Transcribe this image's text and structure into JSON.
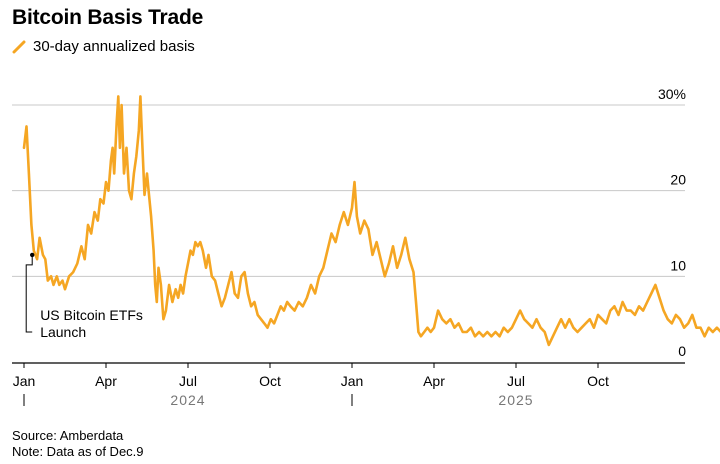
{
  "chart_data": {
    "type": "line",
    "title": "Bitcoin Basis Trade",
    "series": [
      {
        "name": "30-day annualized basis",
        "color": "#F5A623",
        "points": [
          [
            0.0,
            25.0
          ],
          [
            0.03,
            27.5
          ],
          [
            0.06,
            22.0
          ],
          [
            0.09,
            16.0
          ],
          [
            0.12,
            13.0
          ],
          [
            0.16,
            12.0
          ],
          [
            0.19,
            14.5
          ],
          [
            0.23,
            12.5
          ],
          [
            0.26,
            12.0
          ],
          [
            0.29,
            9.5
          ],
          [
            0.33,
            10.0
          ],
          [
            0.36,
            9.0
          ],
          [
            0.4,
            10.0
          ],
          [
            0.43,
            9.0
          ],
          [
            0.47,
            9.5
          ],
          [
            0.5,
            8.5
          ],
          [
            0.55,
            10.0
          ],
          [
            0.6,
            10.5
          ],
          [
            0.65,
            11.5
          ],
          [
            0.7,
            13.5
          ],
          [
            0.74,
            12.0
          ],
          [
            0.78,
            16.0
          ],
          [
            0.82,
            15.0
          ],
          [
            0.86,
            17.5
          ],
          [
            0.9,
            16.5
          ],
          [
            0.93,
            19.0
          ],
          [
            0.97,
            18.5
          ],
          [
            1.0,
            21.0
          ],
          [
            1.03,
            20.0
          ],
          [
            1.06,
            23.5
          ],
          [
            1.08,
            25.0
          ],
          [
            1.1,
            22.0
          ],
          [
            1.13,
            28.0
          ],
          [
            1.15,
            31.0
          ],
          [
            1.17,
            25.0
          ],
          [
            1.19,
            30.0
          ],
          [
            1.22,
            22.0
          ],
          [
            1.25,
            25.0
          ],
          [
            1.28,
            20.0
          ],
          [
            1.31,
            19.0
          ],
          [
            1.34,
            22.0
          ],
          [
            1.37,
            24.0
          ],
          [
            1.4,
            27.0
          ],
          [
            1.42,
            31.0
          ],
          [
            1.44,
            26.0
          ],
          [
            1.47,
            19.5
          ],
          [
            1.5,
            22.0
          ],
          [
            1.52,
            20.0
          ],
          [
            1.55,
            17.0
          ],
          [
            1.58,
            13.0
          ],
          [
            1.6,
            9.0
          ],
          [
            1.62,
            7.0
          ],
          [
            1.64,
            11.0
          ],
          [
            1.67,
            9.0
          ],
          [
            1.7,
            5.0
          ],
          [
            1.73,
            6.0
          ],
          [
            1.77,
            9.0
          ],
          [
            1.81,
            7.0
          ],
          [
            1.85,
            8.5
          ],
          [
            1.88,
            7.5
          ],
          [
            1.91,
            9.0
          ],
          [
            1.94,
            8.0
          ],
          [
            1.97,
            10.0
          ],
          [
            2.0,
            11.5
          ],
          [
            2.03,
            13.0
          ],
          [
            2.06,
            12.5
          ],
          [
            2.09,
            14.0
          ],
          [
            2.12,
            13.5
          ],
          [
            2.15,
            14.0
          ],
          [
            2.18,
            13.0
          ],
          [
            2.22,
            11.0
          ],
          [
            2.25,
            12.5
          ],
          [
            2.29,
            10.0
          ],
          [
            2.33,
            9.5
          ],
          [
            2.37,
            8.0
          ],
          [
            2.41,
            6.5
          ],
          [
            2.45,
            7.5
          ],
          [
            2.49,
            9.0
          ],
          [
            2.53,
            10.5
          ],
          [
            2.57,
            8.0
          ],
          [
            2.61,
            7.5
          ],
          [
            2.65,
            10.0
          ],
          [
            2.69,
            10.5
          ],
          [
            2.73,
            8.0
          ],
          [
            2.77,
            6.5
          ],
          [
            2.81,
            7.0
          ],
          [
            2.85,
            5.5
          ],
          [
            2.89,
            5.0
          ],
          [
            2.93,
            4.5
          ],
          [
            2.97,
            4.0
          ],
          [
            3.01,
            5.0
          ],
          [
            3.05,
            4.5
          ],
          [
            3.09,
            5.5
          ],
          [
            3.13,
            6.5
          ],
          [
            3.17,
            6.0
          ],
          [
            3.21,
            7.0
          ],
          [
            3.25,
            6.5
          ],
          [
            3.3,
            6.0
          ],
          [
            3.35,
            7.0
          ],
          [
            3.4,
            6.5
          ],
          [
            3.45,
            7.5
          ],
          [
            3.5,
            9.0
          ],
          [
            3.55,
            8.0
          ],
          [
            3.6,
            10.0
          ],
          [
            3.65,
            11.0
          ],
          [
            3.7,
            13.0
          ],
          [
            3.75,
            15.0
          ],
          [
            3.8,
            14.0
          ],
          [
            3.85,
            16.0
          ],
          [
            3.9,
            17.5
          ],
          [
            3.95,
            16.0
          ],
          [
            4.0,
            18.0
          ],
          [
            4.03,
            21.0
          ],
          [
            4.06,
            17.0
          ],
          [
            4.1,
            15.0
          ],
          [
            4.15,
            16.5
          ],
          [
            4.2,
            15.5
          ],
          [
            4.25,
            12.5
          ],
          [
            4.3,
            14.0
          ],
          [
            4.35,
            12.0
          ],
          [
            4.4,
            10.0
          ],
          [
            4.45,
            11.5
          ],
          [
            4.5,
            13.5
          ],
          [
            4.55,
            11.0
          ],
          [
            4.6,
            12.5
          ],
          [
            4.65,
            14.5
          ],
          [
            4.7,
            12.0
          ],
          [
            4.75,
            10.5
          ],
          [
            4.78,
            7.0
          ],
          [
            4.81,
            3.5
          ],
          [
            4.84,
            3.0
          ],
          [
            4.88,
            3.5
          ],
          [
            4.92,
            4.0
          ],
          [
            4.96,
            3.5
          ],
          [
            5.0,
            4.0
          ],
          [
            5.05,
            6.0
          ],
          [
            5.1,
            5.0
          ],
          [
            5.15,
            4.5
          ],
          [
            5.2,
            5.0
          ],
          [
            5.25,
            4.0
          ],
          [
            5.3,
            4.5
          ],
          [
            5.35,
            3.5
          ],
          [
            5.4,
            3.5
          ],
          [
            5.45,
            4.0
          ],
          [
            5.5,
            3.0
          ],
          [
            5.55,
            3.5
          ],
          [
            5.6,
            3.0
          ],
          [
            5.65,
            3.5
          ],
          [
            5.7,
            3.0
          ],
          [
            5.75,
            3.5
          ],
          [
            5.8,
            3.0
          ],
          [
            5.85,
            4.0
          ],
          [
            5.9,
            3.5
          ],
          [
            5.95,
            4.0
          ],
          [
            6.0,
            5.0
          ],
          [
            6.05,
            6.0
          ],
          [
            6.1,
            5.0
          ],
          [
            6.15,
            4.5
          ],
          [
            6.2,
            4.0
          ],
          [
            6.25,
            5.0
          ],
          [
            6.3,
            4.0
          ],
          [
            6.35,
            3.5
          ],
          [
            6.4,
            2.0
          ],
          [
            6.45,
            3.0
          ],
          [
            6.5,
            4.0
          ],
          [
            6.55,
            5.0
          ],
          [
            6.6,
            4.0
          ],
          [
            6.65,
            5.0
          ],
          [
            6.7,
            4.0
          ],
          [
            6.75,
            3.5
          ],
          [
            6.8,
            4.0
          ],
          [
            6.85,
            4.5
          ],
          [
            6.9,
            5.0
          ],
          [
            6.95,
            4.0
          ],
          [
            7.0,
            5.5
          ],
          [
            7.05,
            5.0
          ],
          [
            7.1,
            4.5
          ],
          [
            7.15,
            6.0
          ],
          [
            7.2,
            6.5
          ],
          [
            7.25,
            5.5
          ],
          [
            7.3,
            7.0
          ],
          [
            7.35,
            6.0
          ],
          [
            7.4,
            6.0
          ],
          [
            7.45,
            5.5
          ],
          [
            7.5,
            6.5
          ],
          [
            7.55,
            6.0
          ],
          [
            7.6,
            7.0
          ],
          [
            7.65,
            8.0
          ],
          [
            7.7,
            9.0
          ],
          [
            7.75,
            7.5
          ],
          [
            7.8,
            6.0
          ],
          [
            7.85,
            5.0
          ],
          [
            7.9,
            4.5
          ],
          [
            7.95,
            5.5
          ],
          [
            8.0,
            5.0
          ],
          [
            8.05,
            4.0
          ],
          [
            8.1,
            4.5
          ],
          [
            8.15,
            5.5
          ],
          [
            8.2,
            4.0
          ],
          [
            8.25,
            4.0
          ],
          [
            8.3,
            3.0
          ],
          [
            8.35,
            4.0
          ],
          [
            8.4,
            3.5
          ],
          [
            8.45,
            4.0
          ],
          [
            8.5,
            3.5
          ]
        ]
      }
    ],
    "x_ticks": [
      "Jan",
      "Apr",
      "Jul",
      "Oct",
      "Jan",
      "Apr",
      "Jul",
      "Oct"
    ],
    "x_years": [
      "2024",
      "2025"
    ],
    "y_ticks": [
      {
        "value": 30,
        "label": "30%"
      },
      {
        "value": 20,
        "label": "20"
      },
      {
        "value": 10,
        "label": "10"
      },
      {
        "value": 0,
        "label": "0"
      }
    ],
    "ylim": [
      0,
      30
    ],
    "xlim": [
      0,
      8.5
    ],
    "annotations": [
      {
        "line1": "US Bitcoin ETFs",
        "line2": "Launch",
        "x": 0.1,
        "y": 12.5
      }
    ]
  },
  "source": "Source: Amberdata",
  "note": "Note: Data as of Dec.9"
}
